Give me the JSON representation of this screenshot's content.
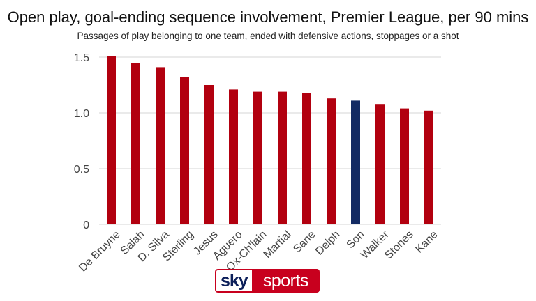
{
  "title": "Open play, goal-ending sequence involvement, Premier League, per 90 mins",
  "subtitle": "Passages of play belonging to one team, ended with defensive actions, stoppages or a shot",
  "logo": {
    "sky": "sky",
    "sports": "sports"
  },
  "colors": {
    "primary_bar": "#b2000f",
    "highlight_bar": "#132a63"
  },
  "chart_data": {
    "type": "bar",
    "title": "Open play, goal-ending sequence involvement, Premier League, per 90 mins",
    "subtitle": "Passages of play belonging to one team, ended with defensive actions, stoppages or a shot",
    "categories": [
      "De Bruyne",
      "Salah",
      "D. Silva",
      "Sterling",
      "Jesus",
      "Aguero",
      "Ox-Ch'lain",
      "Martial",
      "Sane",
      "Delph",
      "Son",
      "Walker",
      "Stones",
      "Kane"
    ],
    "values": [
      1.51,
      1.45,
      1.41,
      1.32,
      1.25,
      1.21,
      1.19,
      1.19,
      1.18,
      1.13,
      1.11,
      1.08,
      1.04,
      1.02
    ],
    "highlight": [
      "Son"
    ],
    "yticks": [
      0,
      0.5,
      1.0,
      1.5
    ],
    "ytick_labels": [
      "0",
      "0.5",
      "1.0",
      "1.5"
    ],
    "ylim": [
      0,
      1.5
    ],
    "xlabel": "",
    "ylabel": "",
    "grid": true,
    "legend": "none"
  }
}
